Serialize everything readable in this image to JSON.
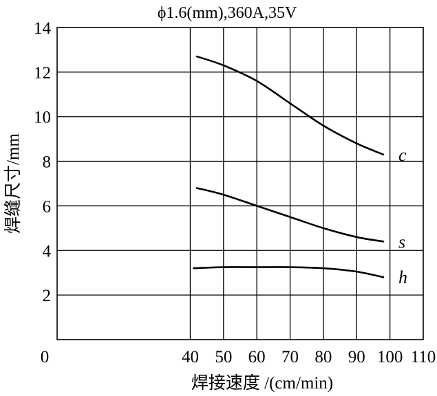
{
  "chart_data": {
    "type": "line",
    "title": "ϕ1.6(mm),360A,35V",
    "xlabel": "焊接速度 /(cm/min)",
    "ylabel": "焊缝尺寸/mm",
    "xlim": [
      0,
      110
    ],
    "ylim": [
      0,
      14
    ],
    "x_ticks": [
      0,
      40,
      50,
      60,
      70,
      80,
      90,
      100,
      110
    ],
    "x_tick_labels": [
      "0",
      "40",
      "50",
      "60",
      "70",
      "80",
      "90",
      "100",
      "110"
    ],
    "y_ticks": [
      2,
      4,
      6,
      8,
      10,
      12,
      14
    ],
    "y_tick_labels": [
      "2",
      "4",
      "6",
      "8",
      "10",
      "12",
      "14"
    ],
    "grid": true,
    "series": [
      {
        "name": "c",
        "x": [
          42,
          50,
          60,
          70,
          80,
          90,
          98
        ],
        "y": [
          12.7,
          12.3,
          11.6,
          10.6,
          9.6,
          8.8,
          8.3
        ]
      },
      {
        "name": "s",
        "x": [
          42,
          50,
          60,
          70,
          80,
          90,
          98
        ],
        "y": [
          6.8,
          6.5,
          6.0,
          5.5,
          5.0,
          4.6,
          4.4
        ]
      },
      {
        "name": "h",
        "x": [
          41,
          50,
          60,
          70,
          80,
          90,
          98
        ],
        "y": [
          3.2,
          3.25,
          3.25,
          3.25,
          3.2,
          3.05,
          2.8
        ]
      }
    ]
  }
}
